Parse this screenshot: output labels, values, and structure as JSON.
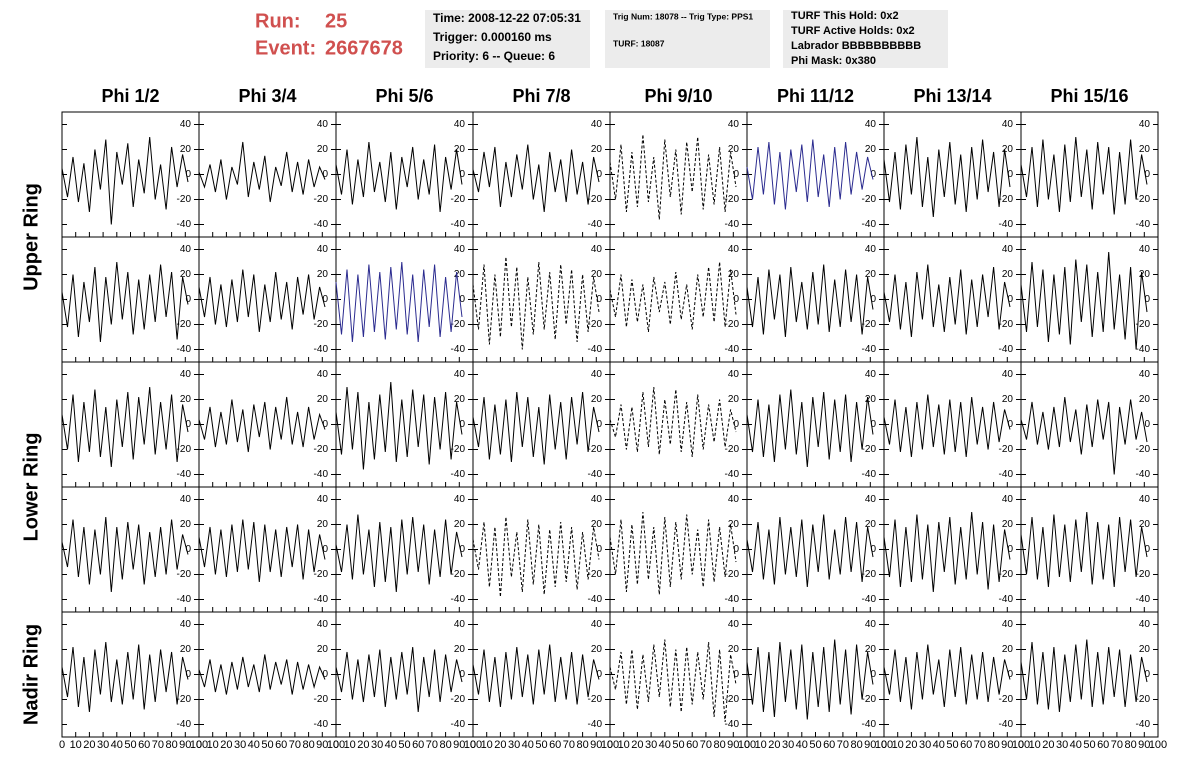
{
  "header": {
    "run_label": "Run:",
    "run": "25",
    "event_label": "Event:",
    "event": "2667678",
    "info": [
      [
        "Time: 2008-12-22 07:05:31",
        "Trigger: 0.000160 ms",
        "Priority: 6 -- Queue: 6"
      ],
      [
        "Trig Num: 18078 -- Trig Type: PPS1",
        "TURF: 18087"
      ],
      [
        "TURF This Hold: 0x2",
        "TURF Active Holds: 0x2",
        "Labrador BBBBBBBBBB",
        "Phi Mask: 0x380"
      ]
    ]
  },
  "panels": {
    "columns": [
      "Phi 1/2",
      "Phi 3/4",
      "Phi 5/6",
      "Phi 7/8",
      "Phi 9/10",
      "Phi 11/12",
      "Phi 13/14",
      "Phi 15/16"
    ],
    "rings": [
      "Upper Ring",
      "Lower Ring",
      "Nadir Ring"
    ],
    "xlim": [
      0,
      100
    ],
    "xticks": [
      0,
      10,
      20,
      30,
      40,
      50,
      60,
      70,
      80,
      90,
      100
    ],
    "ylim": [
      -50,
      50
    ],
    "yticks": [
      -40,
      -20,
      0,
      20,
      40
    ],
    "x": [
      0,
      4,
      8,
      12,
      16,
      20,
      24,
      28,
      32,
      36,
      40,
      44,
      48,
      52,
      56,
      60,
      64,
      68,
      72,
      76,
      80,
      84,
      88,
      92
    ],
    "line_color": "#000000",
    "traces": [
      [
        {
          "values": [
            5,
            -18,
            14,
            -22,
            9,
            -30,
            20,
            -12,
            28,
            -40,
            18,
            -8,
            25,
            -26,
            12,
            -15,
            30,
            -20,
            8,
            -28,
            22,
            -10,
            16,
            -6
          ]
        },
        {
          "values": [
            2,
            -10,
            8,
            -14,
            12,
            -20,
            6,
            -8,
            26,
            -18,
            10,
            -12,
            15,
            -22,
            6,
            -9,
            18,
            -14,
            10,
            -16,
            12,
            -10,
            6,
            -4
          ]
        },
        {
          "values": [
            8,
            -16,
            20,
            -24,
            12,
            -18,
            26,
            -14,
            10,
            -22,
            18,
            -28,
            14,
            -10,
            22,
            -20,
            12,
            -16,
            24,
            -30,
            14,
            -12,
            20,
            -8
          ]
        },
        {
          "values": [
            4,
            -14,
            18,
            -10,
            22,
            -26,
            10,
            -18,
            16,
            -12,
            24,
            -20,
            8,
            -30,
            18,
            -14,
            12,
            -22,
            20,
            -16,
            10,
            -24,
            14,
            -6
          ]
        },
        {
          "values": [
            10,
            -20,
            24,
            -30,
            18,
            -26,
            32,
            -22,
            14,
            -36,
            28,
            -18,
            20,
            -32,
            26,
            -14,
            30,
            -28,
            16,
            -24,
            22,
            -30,
            18,
            -10
          ],
          "dashed": true
        },
        {
          "values": [
            6,
            -20,
            22,
            -16,
            26,
            -24,
            18,
            -28,
            20,
            -14,
            24,
            -22,
            28,
            -18,
            16,
            -26,
            22,
            -20,
            26,
            -16,
            18,
            -12,
            14,
            -4
          ],
          "color": "#2b2b8f"
        },
        {
          "values": [
            12,
            -22,
            18,
            -28,
            24,
            -16,
            30,
            -26,
            14,
            -34,
            20,
            -18,
            26,
            -24,
            16,
            -30,
            22,
            -20,
            28,
            -14,
            18,
            -26,
            20,
            -10
          ]
        },
        {
          "values": [
            8,
            -18,
            22,
            -26,
            28,
            -20,
            16,
            -30,
            24,
            -22,
            30,
            -18,
            20,
            -28,
            26,
            -16,
            22,
            -32,
            18,
            -24,
            28,
            -20,
            16,
            -8
          ]
        }
      ],
      [
        {
          "values": [
            6,
            -22,
            20,
            -30,
            14,
            -18,
            26,
            -34,
            18,
            -20,
            30,
            -16,
            22,
            -28,
            16,
            -24,
            20,
            -18,
            28,
            -14,
            22,
            -32,
            18,
            -4
          ]
        },
        {
          "values": [
            10,
            -14,
            18,
            -20,
            12,
            -22,
            16,
            -18,
            24,
            -14,
            20,
            -26,
            12,
            -18,
            22,
            -16,
            14,
            -24,
            18,
            -12,
            20,
            -16,
            10,
            -6
          ]
        },
        {
          "values": [
            14,
            -28,
            24,
            -34,
            20,
            -30,
            28,
            -26,
            22,
            -32,
            26,
            -24,
            30,
            -28,
            20,
            -34,
            24,
            -22,
            28,
            -30,
            18,
            -26,
            22,
            -14
          ],
          "color": "#2b2b8f"
        },
        {
          "values": [
            12,
            -24,
            28,
            -36,
            20,
            -30,
            34,
            -22,
            26,
            -40,
            18,
            -28,
            30,
            -24,
            22,
            -32,
            28,
            -20,
            24,
            -34,
            20,
            -26,
            18,
            -10
          ],
          "dashed": true
        },
        {
          "values": [
            8,
            -14,
            20,
            -22,
            16,
            -18,
            12,
            -26,
            18,
            -10,
            14,
            -20,
            22,
            -16,
            12,
            -24,
            20,
            -14,
            26,
            -18,
            30,
            -22,
            24,
            -12
          ],
          "dashed": true
        },
        {
          "values": [
            10,
            -22,
            18,
            -28,
            24,
            -16,
            20,
            -30,
            26,
            -18,
            14,
            -24,
            22,
            -20,
            28,
            -26,
            16,
            -22,
            24,
            -18,
            20,
            -28,
            18,
            -8
          ]
        },
        {
          "values": [
            6,
            -18,
            20,
            -24,
            14,
            -30,
            22,
            -16,
            28,
            -22,
            12,
            -26,
            18,
            -20,
            24,
            -28,
            16,
            -22,
            20,
            -14,
            26,
            -24,
            14,
            -6
          ]
        },
        {
          "values": [
            12,
            -26,
            30,
            -22,
            24,
            -34,
            20,
            -28,
            26,
            -36,
            32,
            -18,
            28,
            -30,
            22,
            -26,
            38,
            -24,
            20,
            -32,
            26,
            -40,
            22,
            -10
          ]
        }
      ],
      [
        {
          "values": [
            8,
            -20,
            24,
            -30,
            18,
            -22,
            28,
            -26,
            14,
            -34,
            20,
            -18,
            26,
            -28,
            22,
            -16,
            30,
            -24,
            18,
            -20,
            24,
            -30,
            16,
            -6
          ]
        },
        {
          "values": [
            4,
            -12,
            14,
            -18,
            10,
            -16,
            20,
            -14,
            12,
            -22,
            16,
            -10,
            18,
            -20,
            14,
            -12,
            22,
            -16,
            10,
            -18,
            14,
            -12,
            8,
            -4
          ]
        },
        {
          "values": [
            10,
            -24,
            30,
            -20,
            26,
            -36,
            18,
            -28,
            24,
            -22,
            34,
            -30,
            20,
            -26,
            28,
            -18,
            24,
            -32,
            22,
            -20,
            26,
            -28,
            18,
            -8
          ]
        },
        {
          "values": [
            6,
            -18,
            22,
            -28,
            16,
            -24,
            20,
            -30,
            26,
            -18,
            22,
            -26,
            14,
            -32,
            24,
            -20,
            18,
            -28,
            22,
            -16,
            26,
            -22,
            14,
            -6
          ]
        },
        {
          "values": [
            4,
            -10,
            16,
            -20,
            14,
            -22,
            26,
            -18,
            30,
            -24,
            20,
            -16,
            28,
            -22,
            18,
            -26,
            24,
            -20,
            16,
            -14,
            20,
            -18,
            12,
            -6
          ],
          "dashed": true
        },
        {
          "values": [
            8,
            -22,
            20,
            -26,
            16,
            -30,
            24,
            -20,
            28,
            -24,
            18,
            -34,
            22,
            -18,
            26,
            -28,
            20,
            -22,
            24,
            -30,
            18,
            -20,
            22,
            -8
          ]
        },
        {
          "values": [
            6,
            -16,
            20,
            -22,
            14,
            -26,
            18,
            -20,
            24,
            -18,
            16,
            -24,
            20,
            -22,
            18,
            -26,
            22,
            -16,
            14,
            -20,
            18,
            -14,
            12,
            -4
          ]
        },
        {
          "values": [
            4,
            -12,
            18,
            -16,
            10,
            -20,
            14,
            -18,
            22,
            -14,
            12,
            -24,
            16,
            -18,
            20,
            -12,
            18,
            -40,
            14,
            -16,
            20,
            -12,
            10,
            -14
          ]
        }
      ],
      [
        {
          "values": [
            6,
            -14,
            24,
            -22,
            18,
            -28,
            16,
            -20,
            26,
            -34,
            18,
            -24,
            22,
            -16,
            20,
            -28,
            14,
            -22,
            18,
            -20,
            24,
            -16,
            12,
            -4
          ]
        },
        {
          "values": [
            10,
            -14,
            18,
            -20,
            16,
            -22,
            20,
            -18,
            24,
            -16,
            22,
            -26,
            20,
            -18,
            16,
            -22,
            18,
            -14,
            20,
            -24,
            16,
            -18,
            12,
            -8
          ]
        },
        {
          "values": [
            4,
            -18,
            20,
            -24,
            28,
            -20,
            16,
            -30,
            22,
            -26,
            18,
            -34,
            24,
            -20,
            26,
            -18,
            20,
            -28,
            16,
            -22,
            24,
            -20,
            14,
            -6
          ]
        },
        {
          "values": [
            8,
            -16,
            22,
            -30,
            18,
            -38,
            26,
            -22,
            14,
            -34,
            24,
            -28,
            20,
            -36,
            16,
            -30,
            22,
            -26,
            18,
            -32,
            14,
            -24,
            18,
            -8
          ],
          "dashed": true
        },
        {
          "values": [
            10,
            -20,
            24,
            -34,
            20,
            -28,
            30,
            -24,
            18,
            -36,
            26,
            -30,
            22,
            -24,
            28,
            -20,
            16,
            -30,
            24,
            -26,
            18,
            -22,
            20,
            -10
          ],
          "dashed": true
        },
        {
          "values": [
            8,
            -18,
            22,
            -24,
            16,
            -28,
            26,
            -20,
            18,
            -22,
            24,
            -30,
            20,
            -18,
            28,
            -24,
            16,
            -20,
            26,
            -18,
            22,
            -26,
            18,
            -6
          ]
        },
        {
          "values": [
            10,
            -22,
            24,
            -30,
            18,
            -26,
            28,
            -24,
            20,
            -34,
            22,
            -18,
            26,
            -28,
            18,
            -24,
            30,
            -20,
            22,
            -32,
            20,
            -26,
            16,
            -8
          ]
        },
        {
          "values": [
            12,
            -20,
            26,
            -24,
            18,
            -30,
            28,
            -22,
            20,
            -26,
            24,
            -18,
            30,
            -28,
            22,
            -24,
            20,
            -30,
            26,
            -18,
            24,
            -22,
            18,
            -6
          ]
        }
      ],
      [
        {
          "values": [
            6,
            -18,
            22,
            -26,
            14,
            -30,
            20,
            -16,
            26,
            -22,
            12,
            -24,
            18,
            -20,
            24,
            -28,
            16,
            -22,
            20,
            -14,
            18,
            -24,
            14,
            -4
          ]
        },
        {
          "values": [
            4,
            -10,
            12,
            -14,
            8,
            -16,
            10,
            -12,
            14,
            -10,
            8,
            -14,
            16,
            -12,
            10,
            -8,
            12,
            -16,
            10,
            -12,
            8,
            -10,
            6,
            -4
          ]
        },
        {
          "values": [
            6,
            -14,
            18,
            -20,
            12,
            -22,
            16,
            -18,
            20,
            -26,
            14,
            -20,
            18,
            -16,
            22,
            -30,
            14,
            -18,
            20,
            -22,
            16,
            -14,
            12,
            -6
          ]
        },
        {
          "values": [
            8,
            -16,
            20,
            -22,
            14,
            -26,
            18,
            -20,
            22,
            -18,
            16,
            -24,
            20,
            -16,
            24,
            -22,
            14,
            -20,
            18,
            -24,
            16,
            -18,
            12,
            -4
          ]
        },
        {
          "values": [
            6,
            -12,
            18,
            -24,
            20,
            -28,
            16,
            -22,
            24,
            -18,
            28,
            -26,
            20,
            -30,
            22,
            -24,
            18,
            -20,
            26,
            -34,
            20,
            -38,
            16,
            -8
          ],
          "dashed": true
        },
        {
          "values": [
            10,
            -24,
            22,
            -30,
            18,
            -34,
            26,
            -22,
            20,
            -28,
            24,
            -36,
            18,
            -26,
            22,
            -30,
            28,
            -24,
            20,
            -32,
            24,
            -20,
            18,
            -8
          ]
        },
        {
          "values": [
            6,
            -16,
            20,
            -22,
            14,
            -28,
            18,
            -20,
            24,
            -16,
            12,
            -26,
            20,
            -18,
            22,
            -24,
            16,
            -20,
            18,
            -22,
            14,
            -16,
            12,
            -4
          ]
        },
        {
          "values": [
            10,
            -20,
            26,
            -24,
            18,
            -28,
            22,
            -30,
            16,
            -22,
            24,
            -20,
            28,
            -26,
            18,
            -24,
            22,
            -18,
            20,
            -26,
            16,
            -22,
            14,
            -6
          ]
        }
      ]
    ]
  }
}
